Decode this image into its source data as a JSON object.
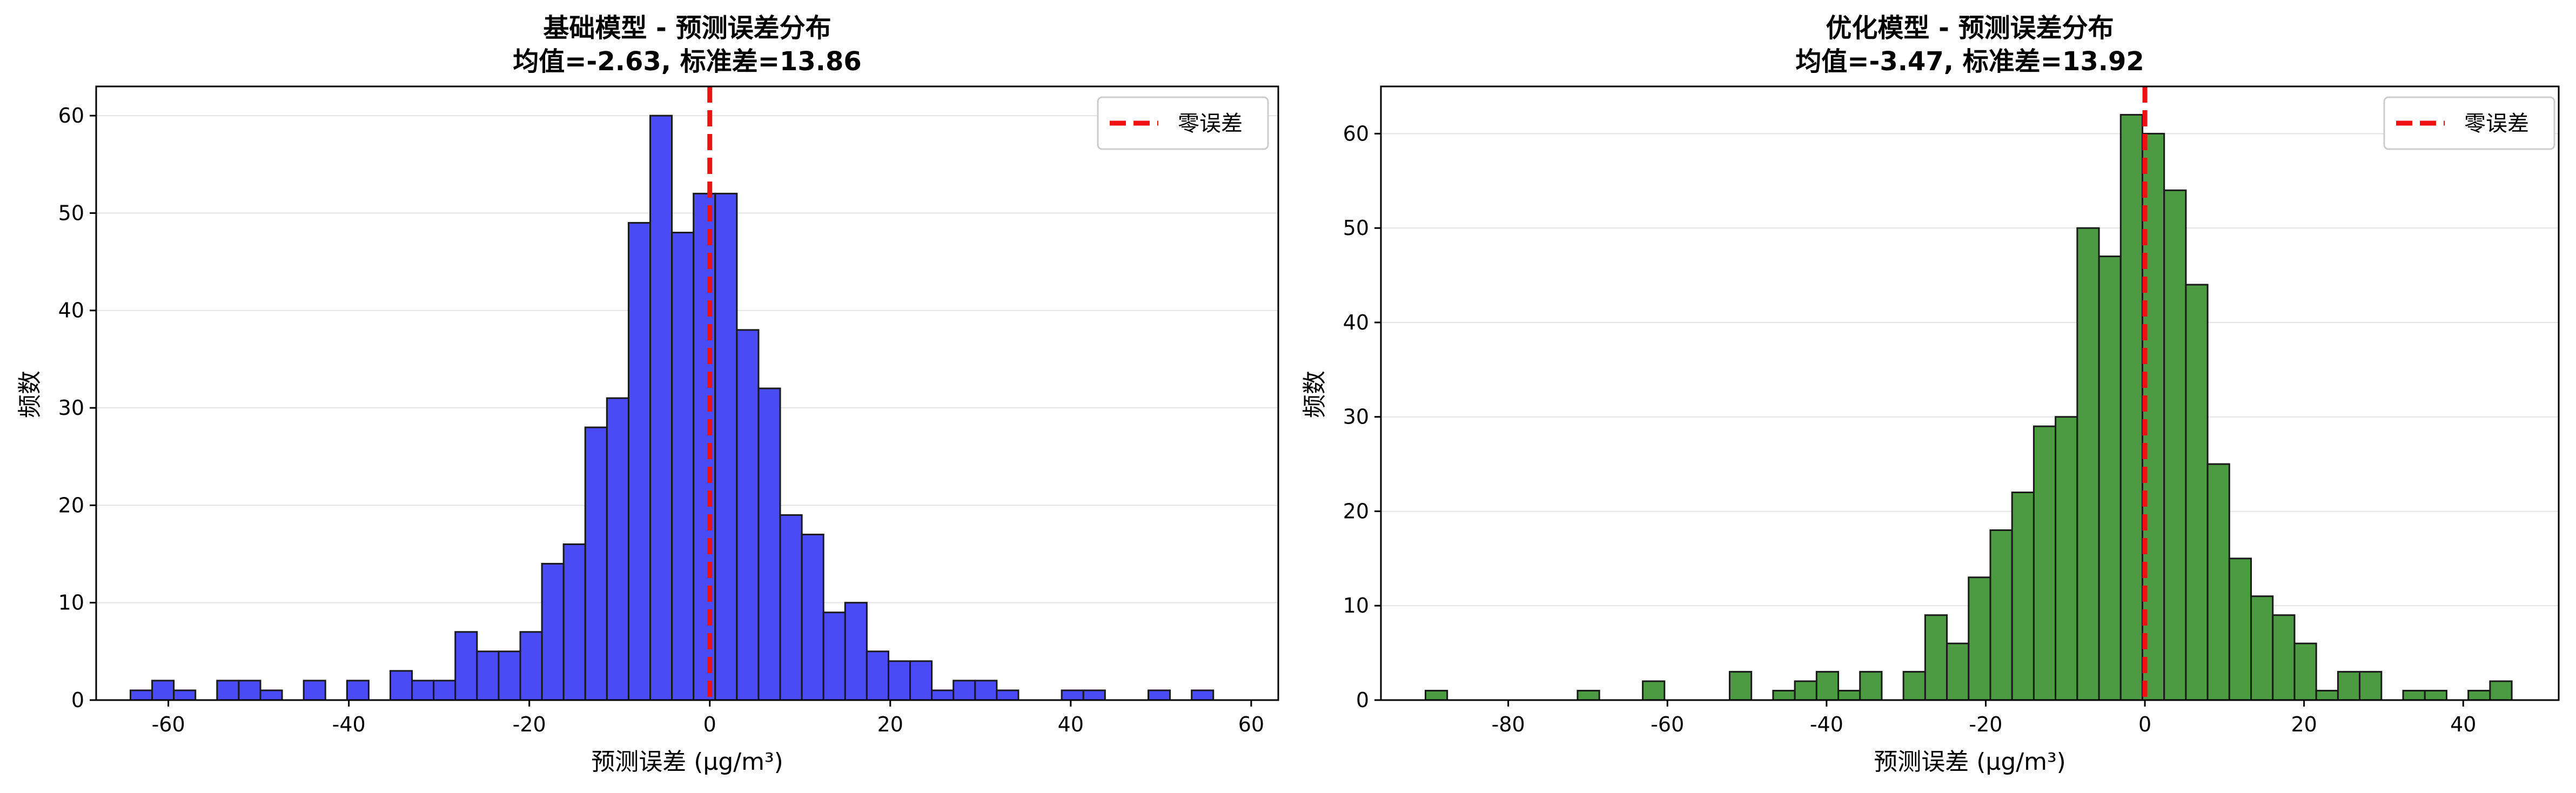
{
  "chart_data": [
    {
      "type": "bar",
      "title": "基础模型 - 预测误差分布",
      "subtitle": "均值=-2.63, 标准差=13.86",
      "xlabel": "预测误差 (μg/m³)",
      "ylabel": "频数",
      "xlim": [
        -68,
        63
      ],
      "ylim": [
        0,
        63
      ],
      "xticks": [
        -60,
        -40,
        -20,
        0,
        20,
        40,
        60
      ],
      "yticks": [
        0,
        10,
        20,
        30,
        40,
        50,
        60
      ],
      "bin_start": -64.2,
      "bin_width": 2.4,
      "counts": [
        1,
        2,
        1,
        0,
        2,
        2,
        1,
        0,
        2,
        0,
        2,
        0,
        3,
        2,
        2,
        7,
        5,
        5,
        7,
        14,
        16,
        28,
        31,
        49,
        60,
        48,
        52,
        52,
        38,
        32,
        19,
        17,
        9,
        10,
        5,
        4,
        4,
        1,
        2,
        2,
        1,
        0,
        0,
        1,
        1,
        0,
        0,
        1,
        0,
        1
      ],
      "bar_color": "#4b4bf5",
      "reference_line": {
        "x": 0,
        "color": "#ee1111",
        "label": "零误差"
      },
      "grid": "y",
      "legend": "top-right"
    },
    {
      "type": "bar",
      "title": "优化模型 - 预测误差分布",
      "subtitle": "均值=-3.47, 标准差=13.92",
      "xlabel": "预测误差 (μg/m³)",
      "ylabel": "频数",
      "xlim": [
        -96,
        52
      ],
      "ylim": [
        0,
        65
      ],
      "xticks": [
        -80,
        -60,
        -40,
        -20,
        0,
        20,
        40
      ],
      "yticks": [
        0,
        10,
        20,
        30,
        40,
        50,
        60
      ],
      "bin_start": -90.4,
      "bin_width": 2.73,
      "counts": [
        1,
        0,
        0,
        0,
        0,
        0,
        0,
        1,
        0,
        0,
        2,
        0,
        0,
        0,
        3,
        0,
        1,
        2,
        3,
        1,
        3,
        0,
        3,
        9,
        6,
        13,
        18,
        22,
        29,
        30,
        50,
        47,
        62,
        60,
        54,
        44,
        25,
        15,
        11,
        9,
        6,
        1,
        3,
        3,
        0,
        1,
        1,
        0,
        1,
        2
      ],
      "bar_color": "#4c9a42",
      "reference_line": {
        "x": 0,
        "color": "#ee1111",
        "label": "零误差"
      },
      "grid": "y",
      "legend": "top-right"
    }
  ]
}
